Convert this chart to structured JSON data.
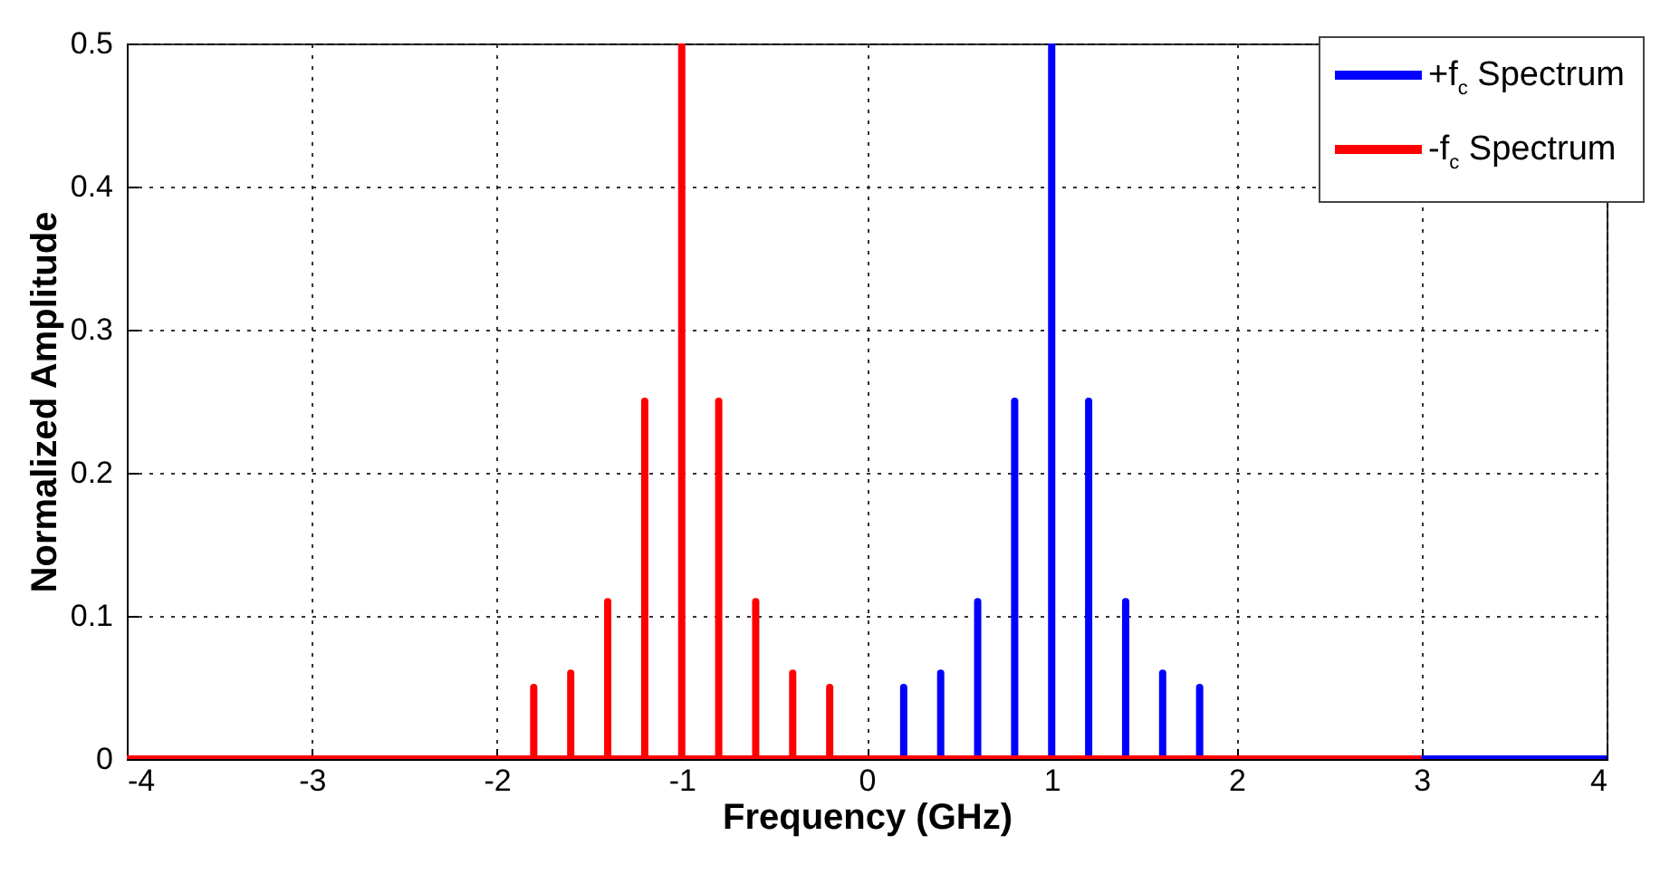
{
  "chart_data": {
    "type": "line",
    "xlabel": "Frequency (GHz)",
    "ylabel": "Normalized Amplitude",
    "xlim": [
      -4,
      4
    ],
    "xticks": [
      -4,
      -3,
      -2,
      -1,
      0,
      1,
      2,
      3,
      4
    ],
    "ylim": [
      0,
      0.5
    ],
    "yticks": [
      0,
      0.1,
      0.2,
      0.3,
      0.4,
      0.5
    ],
    "grid": true,
    "legend": "top right",
    "line_style": "solid",
    "series": [
      {
        "name": "+f$_{c}$ Spectrum",
        "color": "#0000ff",
        "x": [
          0,
          0.2,
          0.2,
          0.2,
          0.4,
          0.4,
          0.4,
          0.6,
          0.6,
          0.6,
          0.8,
          0.8,
          0.8,
          1.0,
          1.0,
          1.0,
          1.2,
          1.2,
          1.2,
          1.4,
          1.4,
          1.4,
          1.6,
          1.6,
          1.6,
          1.8,
          1.8,
          1.8,
          4
        ],
        "values": [
          0,
          0,
          0.05,
          0,
          0,
          0.06,
          0,
          0,
          0.11,
          0,
          0,
          0.25,
          0,
          0,
          0.5,
          0,
          0,
          0.25,
          0,
          0,
          0.11,
          0,
          0,
          0.06,
          0,
          0,
          0.05,
          0,
          0
        ]
      },
      {
        "name": "-f$_{c}$ Spectrum",
        "color": "#ff0000",
        "x": [
          -4,
          -1.8,
          -1.8,
          -1.8,
          -1.6,
          -1.6,
          -1.6,
          -1.4,
          -1.4,
          -1.4,
          -1.2,
          -1.2,
          -1.2,
          -1.0,
          -1.0,
          -1.0,
          -0.8,
          -0.8,
          -0.8,
          -0.6,
          -0.6,
          -0.6,
          -0.4,
          -0.4,
          -0.4,
          -0.2,
          -0.2,
          -0.2,
          3
        ],
        "values": [
          0,
          0,
          0.05,
          0,
          0,
          0.06,
          0,
          0,
          0.11,
          0,
          0,
          0.25,
          0,
          0,
          0.5,
          0,
          0,
          0.25,
          0,
          0,
          0.11,
          0,
          0,
          0.06,
          0,
          0,
          0.05,
          0,
          0
        ]
      }
    ]
  }
}
